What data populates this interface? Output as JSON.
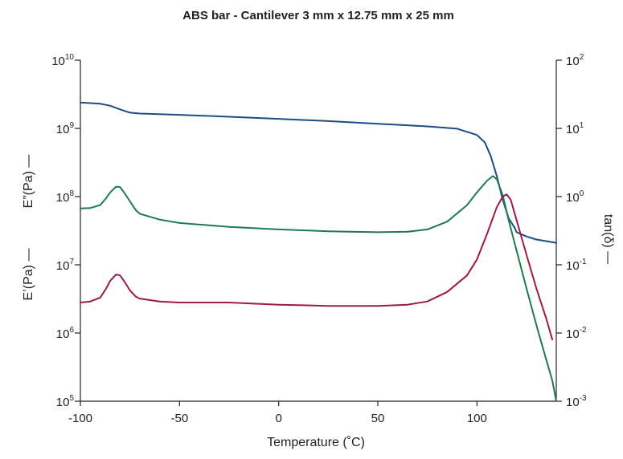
{
  "chart_data": {
    "type": "line",
    "title": "ABS bar - Cantilever 3 mm x 12.75 mm x 25 mm",
    "xlabel": "Temperature (˚C)",
    "xlim": [
      -100,
      140
    ],
    "x_ticks": [
      -100,
      -50,
      0,
      50,
      100
    ],
    "left_axis": {
      "scale": "log",
      "ylim": [
        100000,
        10000000000
      ],
      "tick_base": "10",
      "tick_exponents": [
        "5",
        "6",
        "7",
        "8",
        "9",
        "10"
      ],
      "labels": [
        {
          "text": "E’(Pa) —",
          "color": "#1a4e85"
        },
        {
          "text": "E”(Pa) —",
          "color": "#1f7a4d"
        }
      ]
    },
    "right_axis": {
      "scale": "log",
      "ylim": [
        0.001,
        100
      ],
      "tick_base": "10",
      "tick_exponents": [
        "-3",
        "-2",
        "-1",
        "0",
        "1",
        "2"
      ],
      "label": {
        "text": "tan(δ) —",
        "color": "#9c1b45"
      }
    },
    "series": [
      {
        "name": "E'",
        "axis": "left",
        "color": "#1a4e85",
        "x": [
          -100,
          -90,
          -85,
          -80,
          -75,
          -70,
          -50,
          -25,
          0,
          25,
          50,
          75,
          90,
          100,
          104,
          107,
          110,
          113,
          116,
          119,
          120,
          125,
          130,
          140
        ],
        "y": [
          2400000000.0,
          2300000000.0,
          2150000000.0,
          1900000000.0,
          1700000000.0,
          1650000000.0,
          1580000000.0,
          1480000000.0,
          1380000000.0,
          1280000000.0,
          1170000000.0,
          1070000000.0,
          990000000.0,
          800000000.0,
          620000000.0,
          390000000.0,
          200000000.0,
          90000000.0,
          48000000.0,
          35000000.0,
          30000000.0,
          26000000.0,
          23500000.0,
          21000000.0
        ]
      },
      {
        "name": "E''",
        "axis": "left",
        "color": "#1f7a4d",
        "x": [
          -100,
          -95,
          -90,
          -87,
          -85,
          -82,
          -80,
          -78,
          -75,
          -72,
          -70,
          -60,
          -50,
          -25,
          0,
          25,
          50,
          65,
          75,
          85,
          95,
          100,
          105,
          108,
          110,
          113,
          116,
          120,
          125,
          130,
          135,
          138,
          140
        ],
        "y": [
          67000000.0,
          68000000.0,
          75000000.0,
          95000000.0,
          115000000.0,
          140000000.0,
          138000000.0,
          115000000.0,
          85000000.0,
          63000000.0,
          56000000.0,
          46000000.0,
          41000000.0,
          36000000.0,
          33000000.0,
          31000000.0,
          30000000.0,
          30500000.0,
          33000000.0,
          43000000.0,
          75000000.0,
          115000000.0,
          170000000.0,
          200000000.0,
          180000000.0,
          105000000.0,
          45000000.0,
          16000000.0,
          4500000.0,
          1300000.0,
          400000.0,
          200000.0,
          100000.0
        ]
      },
      {
        "name": "tan(δ)",
        "axis": "right",
        "color": "#9c1b45",
        "x": [
          -100,
          -95,
          -90,
          -87,
          -85,
          -82,
          -80,
          -78,
          -75,
          -72,
          -70,
          -60,
          -50,
          -25,
          0,
          25,
          50,
          65,
          75,
          85,
          95,
          100,
          105,
          110,
          113,
          115,
          117,
          120,
          125,
          130,
          135,
          138
        ],
        "y": [
          0.028,
          0.029,
          0.033,
          0.045,
          0.058,
          0.072,
          0.07,
          0.058,
          0.042,
          0.034,
          0.032,
          0.029,
          0.028,
          0.028,
          0.026,
          0.025,
          0.025,
          0.026,
          0.029,
          0.04,
          0.07,
          0.12,
          0.28,
          0.7,
          1.0,
          1.08,
          0.9,
          0.45,
          0.14,
          0.045,
          0.016,
          0.008
        ]
      }
    ]
  }
}
